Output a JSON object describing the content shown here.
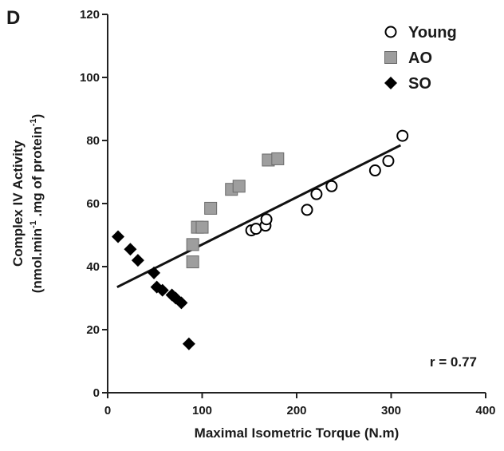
{
  "panel_label": "D",
  "chart_data": {
    "type": "scatter",
    "title": "",
    "xlabel": "Maximal Isometric Torque (N.m)",
    "ylabel_line1": "Complex IV Activity",
    "ylabel_line2": "(nmol.min",
    "ylabel_sup1": "-1",
    "ylabel_mid": " .mg of protein",
    "ylabel_sup2": "-1",
    "ylabel_end": ")",
    "xlim": [
      0,
      400
    ],
    "ylim": [
      0,
      120
    ],
    "xticks": [
      "0",
      "100",
      "200",
      "300",
      "400"
    ],
    "yticks": [
      "0",
      "20",
      "40",
      "60",
      "80",
      "100",
      "120"
    ],
    "grid": false,
    "legend_position": "top-right",
    "annotation": "r = 0.77",
    "fit_line": {
      "x": [
        10,
        310
      ],
      "y": [
        33.5,
        78.5
      ]
    },
    "series": [
      {
        "name": "Young",
        "marker": "open-circle",
        "color": "#000000",
        "points": [
          [
            152,
            51.5
          ],
          [
            157,
            52
          ],
          [
            167,
            53
          ],
          [
            168,
            55
          ],
          [
            211,
            58
          ],
          [
            221,
            63
          ],
          [
            237,
            65.5
          ],
          [
            283,
            70.5
          ],
          [
            297,
            73.5
          ],
          [
            312,
            81.5
          ]
        ]
      },
      {
        "name": "AO",
        "marker": "square",
        "color": "#9e9e9e",
        "points": [
          [
            90,
            41.5
          ],
          [
            90,
            47
          ],
          [
            95,
            52.5
          ],
          [
            100,
            52.5
          ],
          [
            109,
            58.5
          ],
          [
            131,
            64.5
          ],
          [
            139,
            65.5
          ],
          [
            170,
            73.8
          ],
          [
            180,
            74.2
          ]
        ]
      },
      {
        "name": "SO",
        "marker": "diamond",
        "color": "#000000",
        "points": [
          [
            11,
            49.5
          ],
          [
            24,
            45.5
          ],
          [
            32,
            42
          ],
          [
            49,
            38
          ],
          [
            52,
            33.5
          ],
          [
            58,
            32.5
          ],
          [
            68,
            31
          ],
          [
            72,
            30
          ],
          [
            78,
            28.5
          ],
          [
            86,
            15.5
          ]
        ]
      }
    ]
  }
}
